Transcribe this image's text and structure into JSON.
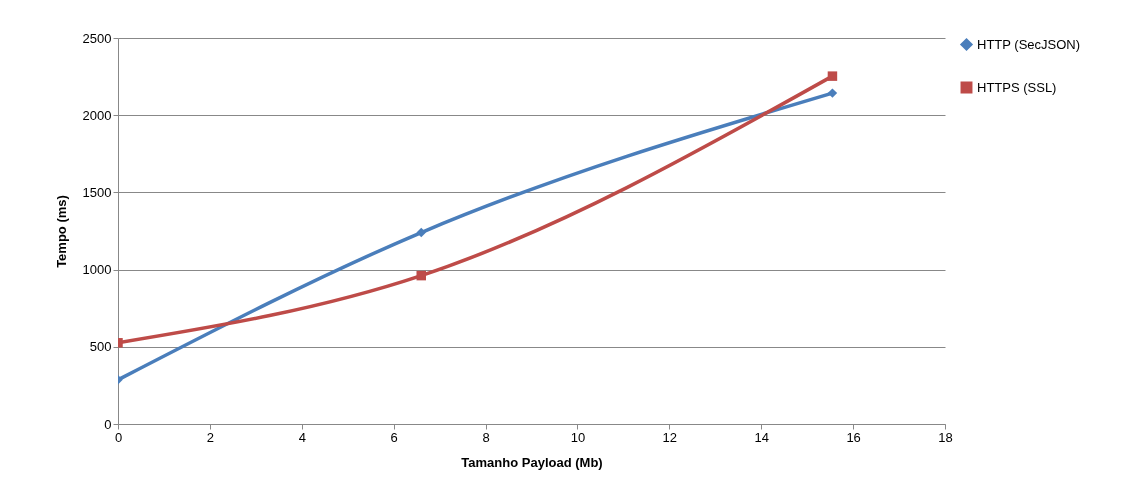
{
  "chart_data": {
    "type": "line",
    "xlabel": "Tamanho Payload (Mb)",
    "ylabel": "Tempo (ms)",
    "x": [
      0,
      6.6,
      15.55
    ],
    "series": [
      {
        "name": "HTTP (SecJSON)",
        "color": "#4a7ebb",
        "values": [
          286,
          1240,
          2143
        ],
        "marker": "diamond"
      },
      {
        "name": "HTTPS (SSL)",
        "color": "#be4b48",
        "values": [
          526,
          961,
          2253
        ],
        "marker": "square"
      }
    ],
    "xlim": [
      0,
      18
    ],
    "xticks": [
      0,
      2,
      4,
      6,
      8,
      10,
      12,
      14,
      16,
      18
    ],
    "ylim": [
      0,
      2500
    ],
    "yticks": [
      0,
      500,
      1000,
      1500,
      2000,
      2500
    ],
    "grid": "y",
    "legend": "right",
    "line_style": "solid"
  }
}
